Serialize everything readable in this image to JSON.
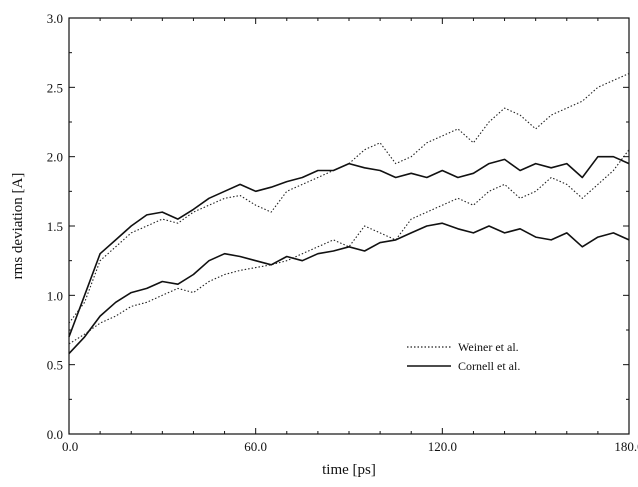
{
  "chart_data": {
    "type": "line",
    "title": "",
    "xlabel": "time [ps]",
    "ylabel": "rms deviation [A]",
    "xlim": [
      0,
      180
    ],
    "ylim": [
      0,
      3.0
    ],
    "x_ticks": [
      0,
      60,
      120,
      180
    ],
    "x_tick_labels": [
      "0.0",
      "60.0",
      "120.0",
      "180.0"
    ],
    "y_ticks": [
      0,
      0.5,
      1.0,
      1.5,
      2.0,
      2.5,
      3.0
    ],
    "y_tick_labels": [
      "0.0",
      "0.5",
      "1.0",
      "1.5",
      "2.0",
      "2.5",
      "3.0"
    ],
    "grid": false,
    "legend_position": "lower-right",
    "series": [
      {
        "name": "Weiner et al.",
        "style": "dotted",
        "color": "#222222",
        "x": [
          0,
          5,
          10,
          15,
          20,
          25,
          30,
          35,
          40,
          45,
          50,
          55,
          60,
          65,
          70,
          75,
          80,
          85,
          90,
          95,
          100,
          105,
          110,
          115,
          120,
          125,
          130,
          135,
          140,
          145,
          150,
          155,
          160,
          165,
          170,
          175,
          180
        ],
        "y": [
          0.8,
          0.95,
          1.25,
          1.35,
          1.45,
          1.5,
          1.55,
          1.52,
          1.6,
          1.65,
          1.7,
          1.72,
          1.65,
          1.6,
          1.75,
          1.8,
          1.85,
          1.9,
          1.95,
          2.05,
          2.1,
          1.95,
          2.0,
          2.1,
          2.15,
          2.2,
          2.1,
          2.25,
          2.35,
          2.3,
          2.2,
          2.3,
          2.35,
          2.4,
          2.5,
          2.55,
          2.6
        ]
      },
      {
        "name": "",
        "style": "dotted",
        "color": "#222222",
        "x": [
          0,
          5,
          10,
          15,
          20,
          25,
          30,
          35,
          40,
          45,
          50,
          55,
          60,
          65,
          70,
          75,
          80,
          85,
          90,
          95,
          100,
          105,
          110,
          115,
          120,
          125,
          130,
          135,
          140,
          145,
          150,
          155,
          160,
          165,
          170,
          175,
          180
        ],
        "y": [
          0.65,
          0.72,
          0.8,
          0.85,
          0.92,
          0.95,
          1.0,
          1.05,
          1.02,
          1.1,
          1.15,
          1.18,
          1.2,
          1.22,
          1.25,
          1.3,
          1.35,
          1.4,
          1.35,
          1.5,
          1.45,
          1.4,
          1.55,
          1.6,
          1.65,
          1.7,
          1.65,
          1.75,
          1.8,
          1.7,
          1.75,
          1.85,
          1.8,
          1.7,
          1.8,
          1.9,
          2.05
        ]
      },
      {
        "name": "Cornell et al.",
        "style": "solid",
        "color": "#111111",
        "x": [
          0,
          5,
          10,
          15,
          20,
          25,
          30,
          35,
          40,
          45,
          50,
          55,
          60,
          65,
          70,
          75,
          80,
          85,
          90,
          95,
          100,
          105,
          110,
          115,
          120,
          125,
          130,
          135,
          140,
          145,
          150,
          155,
          160,
          165,
          170,
          175,
          180
        ],
        "y": [
          0.7,
          1.0,
          1.3,
          1.4,
          1.5,
          1.58,
          1.6,
          1.55,
          1.62,
          1.7,
          1.75,
          1.8,
          1.75,
          1.78,
          1.82,
          1.85,
          1.9,
          1.9,
          1.95,
          1.92,
          1.9,
          1.85,
          1.88,
          1.85,
          1.9,
          1.85,
          1.88,
          1.95,
          1.98,
          1.9,
          1.95,
          1.92,
          1.95,
          1.85,
          2.0,
          2.0,
          1.95
        ]
      },
      {
        "name": "",
        "style": "solid",
        "color": "#111111",
        "x": [
          0,
          5,
          10,
          15,
          20,
          25,
          30,
          35,
          40,
          45,
          50,
          55,
          60,
          65,
          70,
          75,
          80,
          85,
          90,
          95,
          100,
          105,
          110,
          115,
          120,
          125,
          130,
          135,
          140,
          145,
          150,
          155,
          160,
          165,
          170,
          175,
          180
        ],
        "y": [
          0.58,
          0.7,
          0.85,
          0.95,
          1.02,
          1.05,
          1.1,
          1.08,
          1.15,
          1.25,
          1.3,
          1.28,
          1.25,
          1.22,
          1.28,
          1.25,
          1.3,
          1.32,
          1.35,
          1.32,
          1.38,
          1.4,
          1.45,
          1.5,
          1.52,
          1.48,
          1.45,
          1.5,
          1.45,
          1.48,
          1.42,
          1.4,
          1.45,
          1.35,
          1.42,
          1.45,
          1.4
        ]
      }
    ]
  }
}
